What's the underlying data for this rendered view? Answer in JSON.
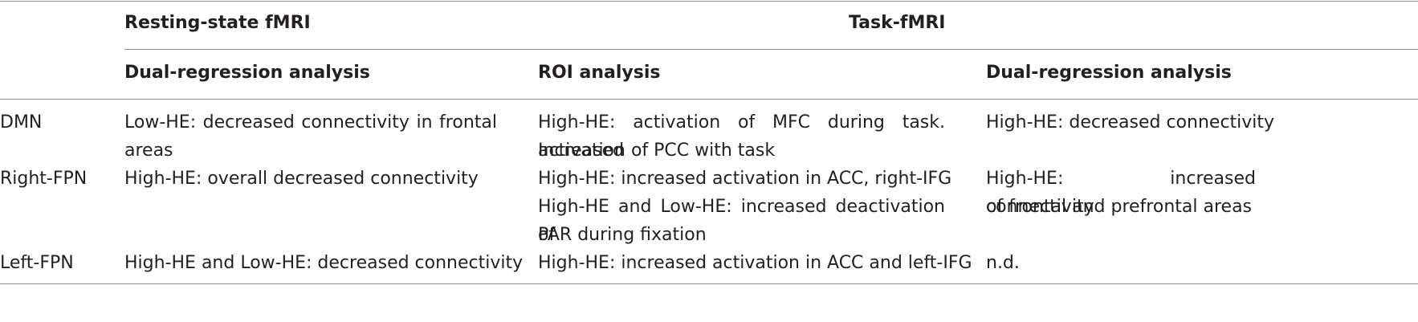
{
  "header": {
    "group_resting": "Resting-state fMRI",
    "group_task": "Task-fMRI",
    "sub_resting": "Dual-regression analysis",
    "sub_roi": "ROI analysis",
    "sub_task_dual": "Dual-regression analysis"
  },
  "rows": [
    {
      "network": "DMN",
      "resting_line1": "Low-HE: decreased connectivity in frontal",
      "resting_line2": "areas",
      "roi_line1": "High-HE: activation of MFC during task. Increased",
      "roi_line2": "activation of PCC with task",
      "task_dual_line1": "High-HE: decreased connectivity"
    },
    {
      "network": "Right-FPN",
      "resting_line1": "High-HE: overall decreased connectivity",
      "roi_line1": "High-HE: increased activation in ACC, right-IFG",
      "roi_line2": "High-HE and Low-HE: increased deactivation of",
      "roi_line3": "PAR during fixation",
      "task_dual_line1": "High-HE: increased connectivity",
      "task_dual_line2": "of frontal and prefrontal areas"
    },
    {
      "network": "Left-FPN",
      "resting_line1": "High-HE and Low-HE: decreased connectivity",
      "roi_line1": "High-HE: increased activation in ACC and left-IFG",
      "task_dual_line1": "n.d."
    }
  ]
}
